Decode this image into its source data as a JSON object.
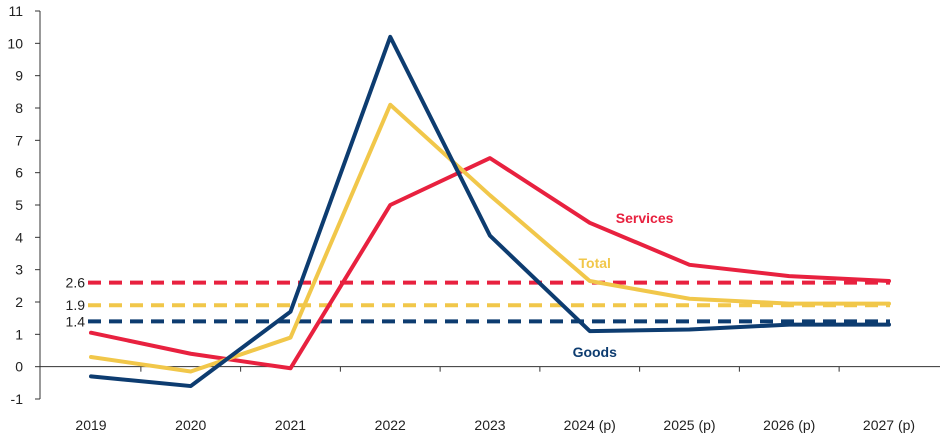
{
  "chart_data": {
    "type": "line",
    "title": "",
    "xlabel": "",
    "ylabel": "",
    "categories": [
      "2019",
      "2020",
      "2021",
      "2022",
      "2023",
      "2024 (p)",
      "2025 (p)",
      "2026 (p)",
      "2027 (p)"
    ],
    "ylim": [
      -1,
      11
    ],
    "yticks": [
      -1,
      0,
      1,
      2,
      3,
      4,
      5,
      6,
      7,
      8,
      9,
      10,
      11
    ],
    "grid": false,
    "series": [
      {
        "name": "Services",
        "color": "#e8213f",
        "values": [
          1.05,
          0.4,
          -0.05,
          5.0,
          6.45,
          4.45,
          3.15,
          2.8,
          2.65
        ]
      },
      {
        "name": "Total",
        "color": "#f1c74a",
        "values": [
          0.3,
          -0.15,
          0.9,
          8.1,
          5.3,
          2.65,
          2.1,
          1.95,
          1.95
        ]
      },
      {
        "name": "Goods",
        "color": "#0d3c70",
        "values": [
          -0.3,
          -0.6,
          1.7,
          10.2,
          4.05,
          1.1,
          1.15,
          1.3,
          1.3
        ]
      }
    ],
    "reference_lines": [
      {
        "value": 2.6,
        "label": "2.6",
        "color": "#e8213f"
      },
      {
        "value": 1.9,
        "label": "1.9",
        "color": "#f1c74a"
      },
      {
        "value": 1.4,
        "label": "1.4",
        "color": "#0d3c70"
      }
    ]
  }
}
